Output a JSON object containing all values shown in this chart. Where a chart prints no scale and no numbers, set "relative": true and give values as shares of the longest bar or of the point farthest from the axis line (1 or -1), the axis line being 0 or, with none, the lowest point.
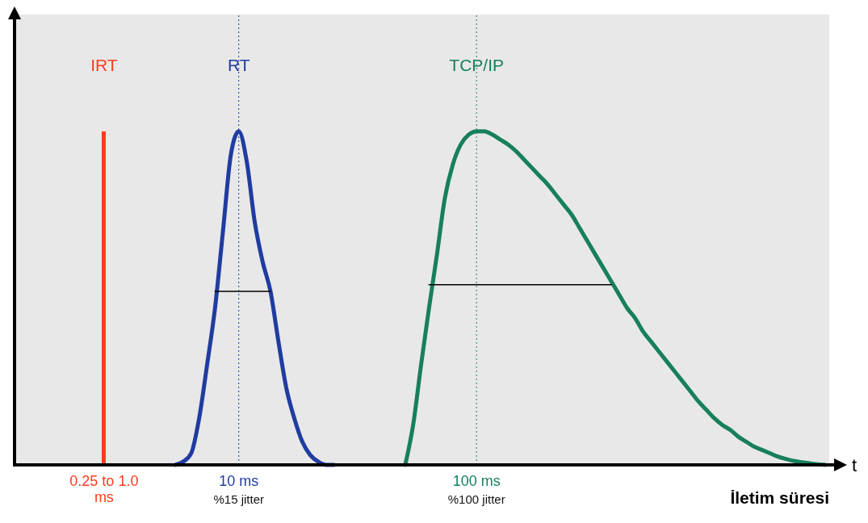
{
  "chart_data": {
    "type": "line",
    "relative": true,
    "categories": [
      null,
      null,
      null,
      null,
      null,
      null,
      null,
      null,
      null,
      null,
      null,
      "0.25 to 1.0 ms",
      null,
      null,
      null,
      null,
      null,
      null,
      null,
      null,
      null,
      null,
      null,
      null,
      null,
      null,
      null,
      null,
      "10 ms",
      null,
      null,
      null,
      null,
      null,
      null,
      null,
      null,
      null,
      null,
      null,
      null,
      null,
      null,
      null,
      null,
      null,
      null,
      null,
      null,
      null,
      null,
      null,
      null,
      null,
      null,
      null,
      null,
      null,
      "100 ms",
      null,
      null,
      null,
      null,
      null,
      null,
      null,
      null,
      null,
      null,
      null,
      null,
      null,
      null,
      null,
      null,
      null,
      null,
      null,
      null,
      null,
      null,
      null,
      null,
      null,
      null,
      null,
      null,
      null,
      null,
      null,
      null,
      null,
      null,
      null,
      null,
      null,
      null,
      null,
      null,
      null,
      null,
      null,
      null
    ],
    "series": [
      {
        "name": "IRT",
        "type": "bar",
        "color": "#ff3b1f",
        "values": [
          null,
          null,
          null,
          null,
          null,
          null,
          null,
          null,
          null,
          null,
          null,
          1,
          null,
          null,
          null,
          null,
          null,
          null,
          null,
          null,
          null,
          null,
          null,
          null,
          null,
          null,
          null,
          null,
          null,
          null,
          null,
          null,
          null,
          null,
          null,
          null,
          null,
          null,
          null,
          null,
          null,
          null,
          null,
          null,
          null,
          null,
          null,
          null,
          null,
          null,
          null,
          null,
          null,
          null,
          null,
          null,
          null,
          null,
          null,
          null,
          null,
          null,
          null,
          null,
          null,
          null,
          null,
          null,
          null,
          null,
          null,
          null,
          null,
          null,
          null,
          null,
          null,
          null,
          null,
          null,
          null,
          null,
          null,
          null,
          null,
          null,
          null,
          null,
          null,
          null,
          null,
          null,
          null,
          null,
          null,
          null,
          null,
          null,
          null,
          null,
          null,
          null,
          null
        ]
      },
      {
        "name": "RT",
        "color": "#1f3ca0",
        "values": [
          null,
          null,
          null,
          null,
          null,
          null,
          null,
          null,
          null,
          null,
          null,
          null,
          null,
          null,
          null,
          null,
          null,
          null,
          null,
          null,
          0,
          0.01,
          0.035,
          0.14,
          0.3,
          0.47,
          0.7,
          0.93,
          1,
          0.91,
          0.73,
          0.61,
          0.52,
          0.37,
          0.23,
          0.14,
          0.07,
          0.03,
          0.01,
          0,
          0,
          null,
          null,
          null,
          null,
          null,
          null,
          null,
          null,
          null,
          null,
          null,
          null,
          null,
          null,
          null,
          null,
          null,
          null,
          null,
          null,
          null,
          null,
          null,
          null,
          null,
          null,
          null,
          null,
          null,
          null,
          null,
          null,
          null,
          null,
          null,
          null,
          null,
          null,
          null,
          null,
          null,
          null,
          null,
          null,
          null,
          null,
          null,
          null,
          null,
          null,
          null,
          null,
          null,
          null,
          null,
          null,
          null,
          null,
          null,
          null,
          null,
          null
        ]
      },
      {
        "name": "TCP/IP",
        "color": "#17805a",
        "values": [
          null,
          null,
          null,
          null,
          null,
          null,
          null,
          null,
          null,
          null,
          null,
          null,
          null,
          null,
          null,
          null,
          null,
          null,
          null,
          null,
          null,
          null,
          null,
          null,
          null,
          null,
          null,
          null,
          null,
          null,
          null,
          null,
          null,
          null,
          null,
          null,
          null,
          null,
          null,
          null,
          null,
          null,
          null,
          null,
          null,
          null,
          null,
          null,
          null,
          0,
          0.12,
          0.3,
          0.47,
          0.63,
          0.8,
          0.9,
          0.96,
          0.99,
          1,
          1,
          0.99,
          0.975,
          0.96,
          0.94,
          0.915,
          0.89,
          0.865,
          0.84,
          0.81,
          0.78,
          0.75,
          0.71,
          0.67,
          0.63,
          0.59,
          0.55,
          0.51,
          0.47,
          0.44,
          0.4,
          0.37,
          0.34,
          0.31,
          0.28,
          0.25,
          0.22,
          0.19,
          0.165,
          0.14,
          0.12,
          0.105,
          0.085,
          0.07,
          0.055,
          0.045,
          0.035,
          0.025,
          0.018,
          0.012,
          0.008,
          0.005,
          0.002,
          0
        ]
      },
      {
        "color": "#000000",
        "values": [
          null,
          null,
          null,
          null,
          null,
          null,
          null,
          null,
          null,
          null,
          null,
          null,
          null,
          null,
          null,
          null,
          null,
          null,
          null,
          null,
          null,
          null,
          null,
          null,
          null,
          0.52,
          null,
          null,
          null,
          null,
          null,
          null,
          0.52,
          null,
          null,
          null,
          null,
          null,
          null,
          null,
          null,
          null,
          null,
          null,
          null,
          null,
          null,
          null,
          null,
          null,
          null,
          null,
          null,
          null,
          null,
          null,
          null,
          null,
          null,
          null,
          null,
          null,
          null,
          null,
          null,
          null,
          null,
          null,
          null,
          null,
          null,
          null,
          null,
          null,
          null,
          null,
          null,
          null,
          null,
          null,
          null,
          null,
          null,
          null,
          null,
          null,
          null,
          null,
          null,
          null,
          null,
          null,
          null,
          null,
          null,
          null,
          null,
          null,
          null,
          null,
          null,
          null,
          null
        ]
      },
      {
        "color": "#000000",
        "values": [
          null,
          null,
          null,
          null,
          null,
          null,
          null,
          null,
          null,
          null,
          null,
          null,
          null,
          null,
          null,
          null,
          null,
          null,
          null,
          null,
          null,
          null,
          null,
          null,
          null,
          null,
          null,
          null,
          null,
          null,
          null,
          null,
          null,
          null,
          null,
          null,
          null,
          null,
          null,
          null,
          null,
          null,
          null,
          null,
          null,
          null,
          null,
          null,
          null,
          null,
          null,
          null,
          0.54,
          null,
          null,
          null,
          null,
          null,
          null,
          null,
          null,
          null,
          null,
          null,
          null,
          null,
          null,
          null,
          null,
          null,
          null,
          null,
          null,
          null,
          null,
          0.54,
          null,
          null,
          null,
          null,
          null,
          null,
          null,
          null,
          null,
          null,
          null,
          null,
          null,
          null,
          null,
          null,
          null,
          null,
          null,
          null,
          null,
          null,
          null,
          null,
          null,
          null,
          null
        ]
      }
    ],
    "ref_lines": [
      {
        "axis": "x",
        "value": "10 ms",
        "color": "#1f3ca0",
        "line_style": "dotted"
      },
      {
        "axis": "x",
        "value": "100 ms",
        "color": "#17805a",
        "line_style": "dotted"
      }
    ],
    "xlabel": "İletim süresi",
    "annotations": [
      "%15 jitter",
      "%100 jitter",
      "t"
    ]
  }
}
